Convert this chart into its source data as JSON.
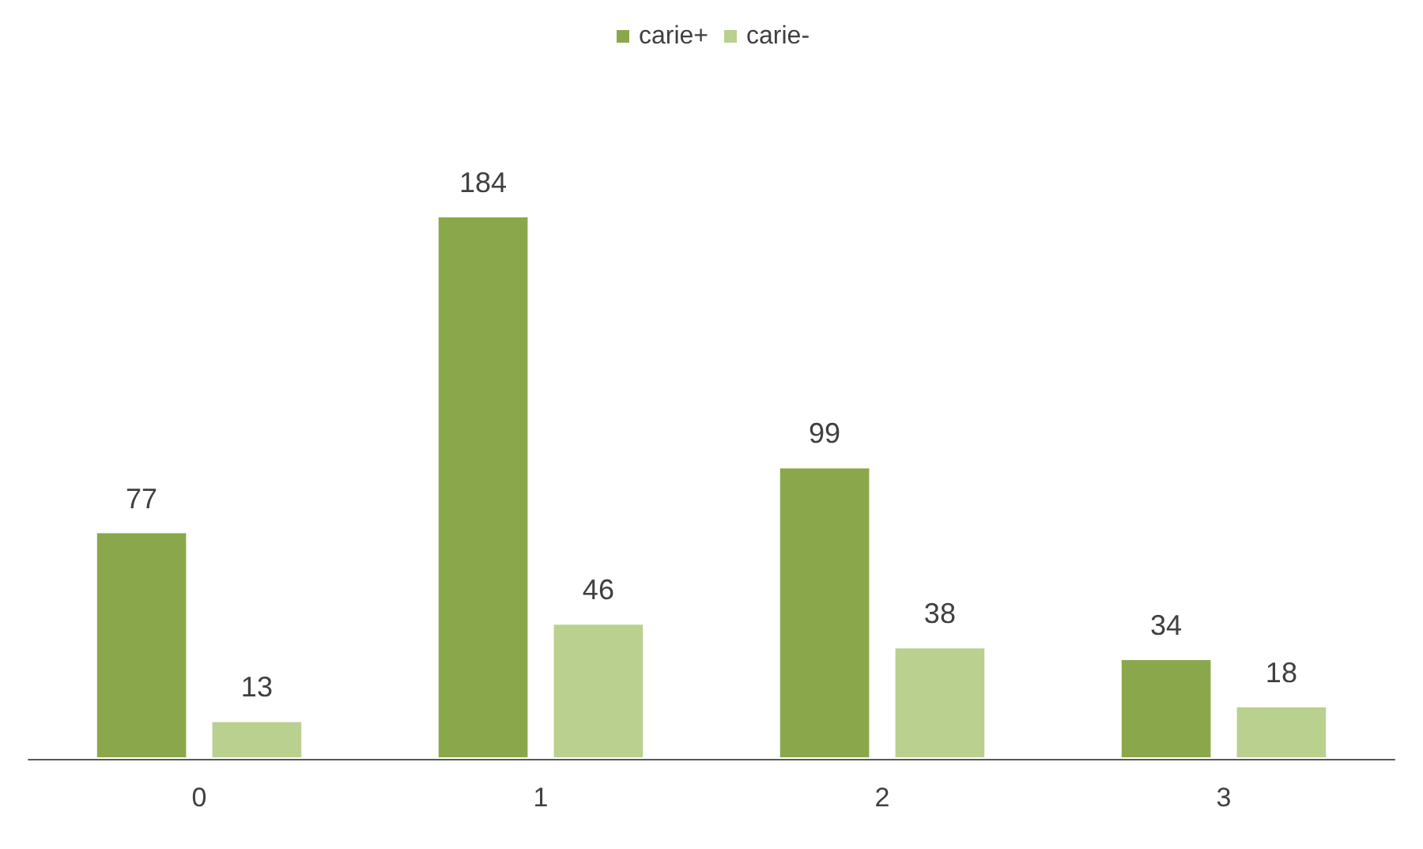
{
  "chart_data": {
    "type": "bar",
    "categories": [
      "0",
      "1",
      "2",
      "3"
    ],
    "series": [
      {
        "name": "carie+",
        "color": "#8aa84b",
        "values": [
          77,
          184,
          99,
          34
        ]
      },
      {
        "name": "carie-",
        "color": "#b9d08f",
        "values": [
          13,
          46,
          38,
          18
        ]
      }
    ],
    "data_labels": true,
    "legend": "top"
  }
}
